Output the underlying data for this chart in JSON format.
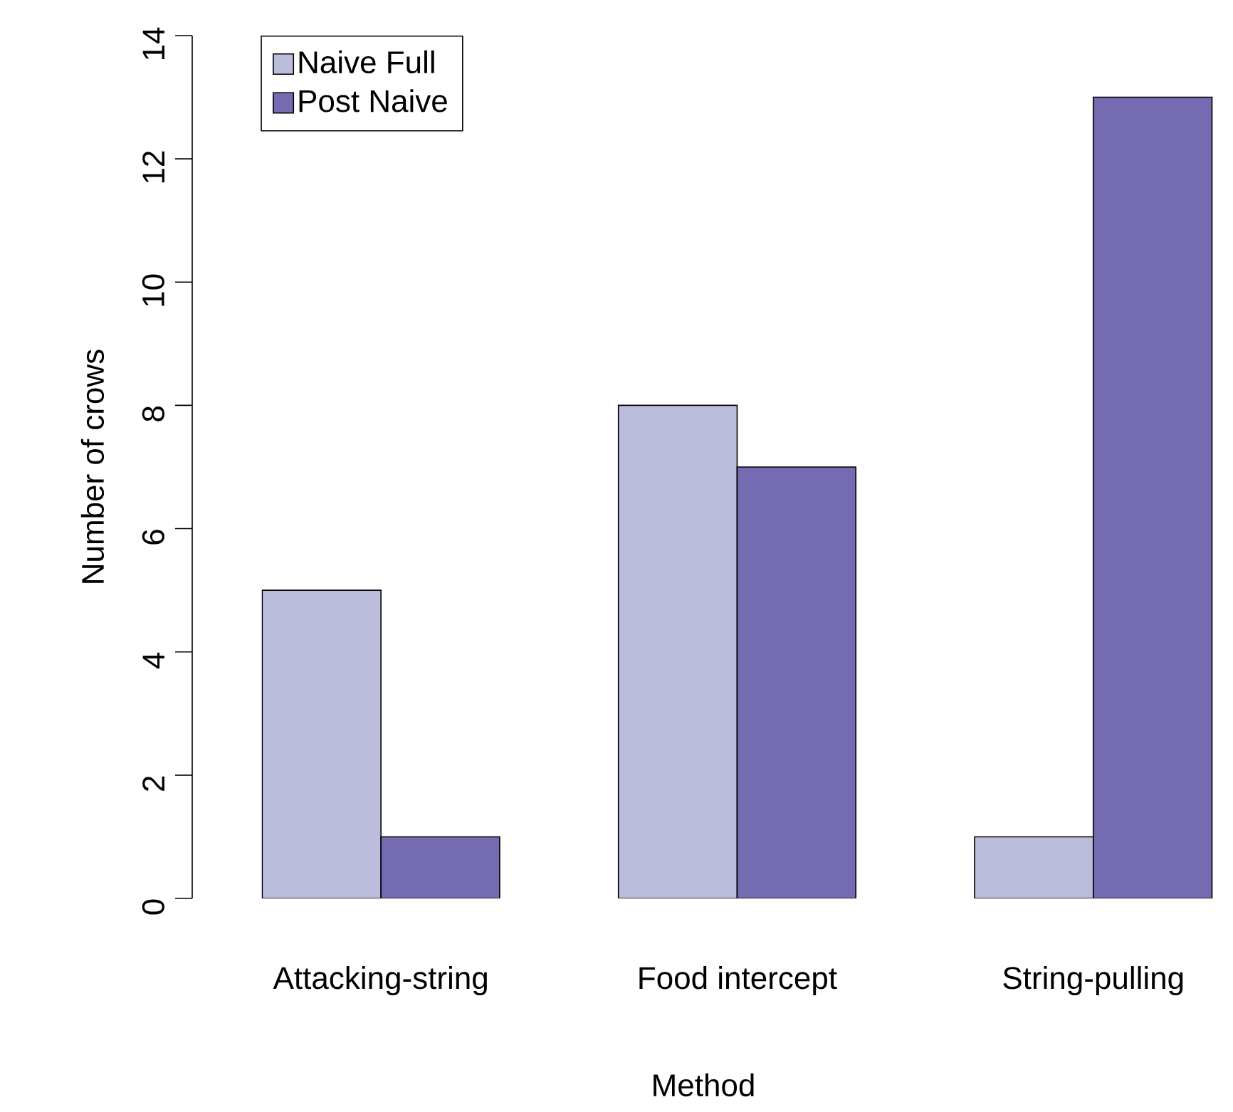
{
  "chart_data": {
    "type": "bar",
    "xlabel": "Method",
    "ylabel": "Number of crows",
    "categories": [
      "Attacking-string",
      "Food intercept",
      "String-pulling"
    ],
    "series": [
      {
        "name": "Naive Full",
        "color": "#bcbddc",
        "values": [
          5,
          8,
          1
        ]
      },
      {
        "name": "Post Naive",
        "color": "#756bb1",
        "values": [
          1,
          7,
          13
        ]
      }
    ],
    "ylim": [
      0,
      14
    ],
    "yticks": [
      0,
      2,
      4,
      6,
      8,
      10,
      12,
      14
    ],
    "legend": "top left"
  }
}
